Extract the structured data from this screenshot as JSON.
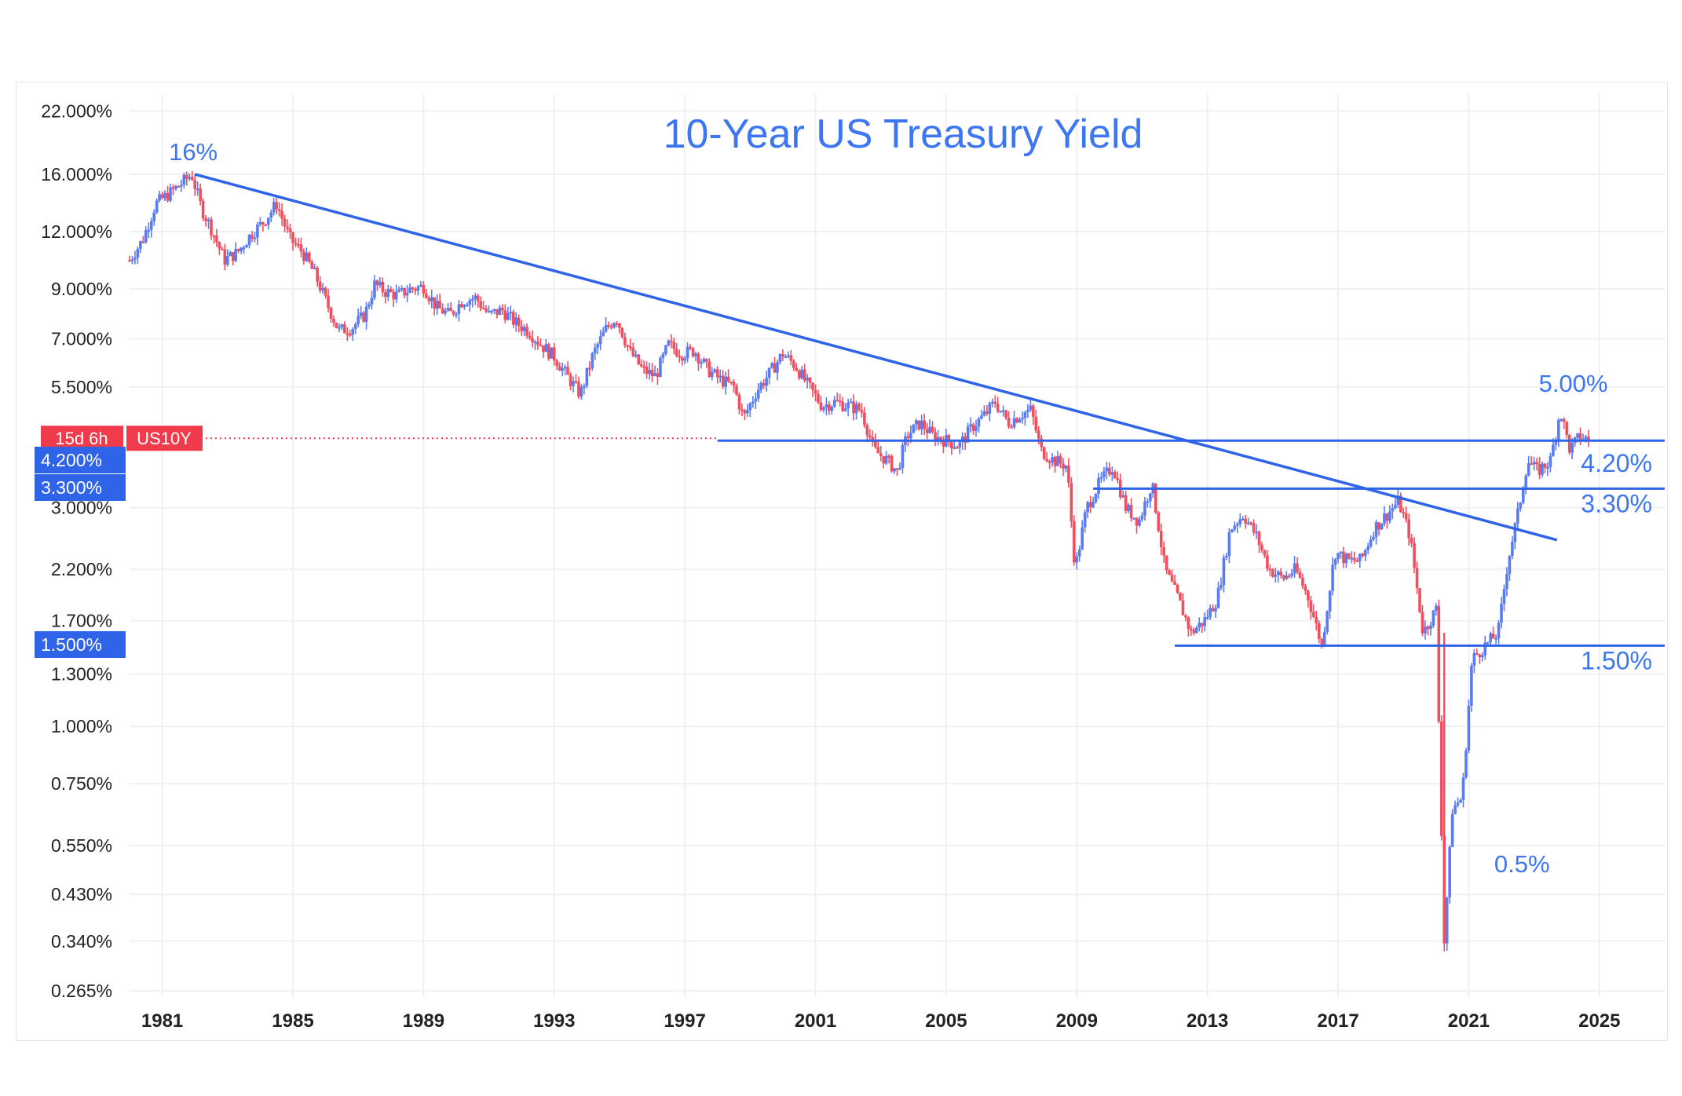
{
  "colors": {
    "up": "#5b7cf0",
    "down": "#ef4f5f",
    "accent": "#3d76f2",
    "line": "#2f63e8",
    "tag_red": "#ef3b4b",
    "tag_blue": "#2f63e8",
    "grid": "#eef0f3",
    "axis_text": "#222222"
  },
  "chart_data": {
    "type": "candlestick-line",
    "title": "10-Year US Treasury Yield",
    "xlabel": "",
    "ylabel": "",
    "y_scale": "log",
    "x_range": [
      1980.0,
      2027.0
    ],
    "y_range": [
      0.265,
      23.0
    ],
    "grid": true,
    "x_ticks": [
      "1981",
      "1985",
      "1989",
      "1993",
      "1997",
      "2001",
      "2005",
      "2009",
      "2013",
      "2017",
      "2021",
      "2025"
    ],
    "y_ticks": [
      "22.000%",
      "16.000%",
      "12.000%",
      "9.000%",
      "7.000%",
      "5.500%",
      "3.000%",
      "2.200%",
      "1.700%",
      "1.300%",
      "1.000%",
      "0.750%",
      "0.550%",
      "0.430%",
      "0.340%",
      "0.265%"
    ],
    "y_tick_values": [
      22.0,
      16.0,
      12.0,
      9.0,
      7.0,
      5.5,
      3.0,
      2.2,
      1.7,
      1.3,
      1.0,
      0.75,
      0.55,
      0.43,
      0.34,
      0.265
    ],
    "series": [
      {
        "x": [
          1980.0,
          1980.4,
          1980.8,
          1981.2,
          1981.6,
          1981.9,
          1982.2,
          1982.5,
          1982.9,
          1983.3,
          1983.7,
          1984.1,
          1984.5,
          1984.9,
          1985.3,
          1985.7,
          1986.0,
          1986.4,
          1986.8,
          1987.2,
          1987.5,
          1987.8,
          1988.2,
          1988.6,
          1989.0,
          1989.4,
          1989.8,
          1990.2,
          1990.6,
          1991.0,
          1991.4,
          1991.8,
          1992.2,
          1992.6,
          1993.0,
          1993.4,
          1993.8,
          1994.2,
          1994.6,
          1994.9,
          1995.3,
          1995.7,
          1996.1,
          1996.5,
          1996.9,
          1997.3,
          1997.7,
          1998.1,
          1998.5,
          1998.8,
          1999.2,
          1999.6,
          2000.0,
          2000.4,
          2000.8,
          2001.2,
          2001.6,
          2002.0,
          2002.4,
          2002.8,
          2003.2,
          2003.5,
          2003.8,
          2004.2,
          2004.6,
          2005.0,
          2005.4,
          2005.8,
          2006.2,
          2006.5,
          2006.9,
          2007.3,
          2007.6,
          2007.9,
          2008.3,
          2008.7,
          2008.95,
          2009.3,
          2009.7,
          2010.1,
          2010.5,
          2010.9,
          2011.3,
          2011.7,
          2012.1,
          2012.5,
          2012.9,
          2013.3,
          2013.7,
          2014.1,
          2014.5,
          2014.9,
          2015.3,
          2015.7,
          2016.1,
          2016.5,
          2016.9,
          2017.3,
          2017.7,
          2018.1,
          2018.5,
          2018.85,
          2019.2,
          2019.6,
          2020.0,
          2020.25,
          2020.5,
          2020.8,
          2021.1,
          2021.5,
          2021.9,
          2022.2,
          2022.5,
          2022.8,
          2023.1,
          2023.5,
          2023.8,
          2024.1,
          2024.4,
          2024.7
        ],
        "values": [
          10.4,
          11.5,
          13.8,
          14.5,
          15.3,
          16.0,
          13.5,
          12.2,
          10.4,
          10.8,
          11.8,
          12.6,
          13.8,
          11.6,
          10.8,
          9.6,
          8.5,
          7.3,
          7.4,
          7.9,
          9.2,
          8.9,
          8.7,
          9.0,
          9.1,
          8.2,
          7.9,
          8.5,
          8.6,
          7.9,
          8.1,
          7.6,
          7.3,
          6.8,
          6.4,
          5.8,
          5.3,
          6.5,
          7.4,
          7.8,
          6.6,
          6.0,
          5.8,
          6.8,
          6.5,
          6.6,
          6.0,
          5.7,
          5.5,
          4.7,
          5.4,
          5.9,
          6.5,
          6.1,
          5.5,
          5.0,
          5.1,
          5.0,
          4.9,
          4.0,
          3.8,
          3.6,
          4.3,
          4.6,
          4.3,
          4.2,
          4.1,
          4.5,
          4.8,
          5.1,
          4.6,
          4.8,
          4.9,
          4.0,
          3.8,
          3.7,
          2.2,
          3.0,
          3.4,
          3.7,
          3.0,
          2.8,
          3.4,
          2.2,
          1.9,
          1.6,
          1.7,
          1.9,
          2.7,
          2.9,
          2.6,
          2.2,
          2.1,
          2.2,
          1.9,
          1.5,
          2.4,
          2.3,
          2.3,
          2.7,
          2.9,
          3.1,
          2.6,
          1.6,
          1.8,
          0.34,
          0.66,
          0.7,
          1.4,
          1.5,
          1.6,
          2.3,
          2.9,
          3.8,
          3.6,
          3.8,
          4.9,
          4.0,
          4.3,
          4.2
        ]
      }
    ],
    "trendline": {
      "x": [
        1982.0,
        2023.7
      ],
      "y": [
        16.0,
        2.55
      ]
    },
    "levels": [
      {
        "value": 4.2,
        "x_start": 1998.0,
        "label": "4.20%"
      },
      {
        "value": 3.3,
        "x_start": 2009.5,
        "label": "3.30%"
      },
      {
        "value": 1.5,
        "x_start": 2012.0,
        "label": "1.50%"
      }
    ],
    "annotations": [
      {
        "text": "16%",
        "x": 1981.95,
        "y": 16.0
      },
      {
        "text": "5.00%",
        "x": 2024.2,
        "y": 5.0
      },
      {
        "text": "0.5%",
        "x": 2021.3,
        "y": 0.5
      }
    ],
    "price_line": {
      "value": 4.25,
      "tag_countdown": "15d 6h",
      "tag_symbol": "US10Y"
    },
    "axis_tags": [
      "4.200%",
      "3.300%",
      "1.500%"
    ]
  }
}
